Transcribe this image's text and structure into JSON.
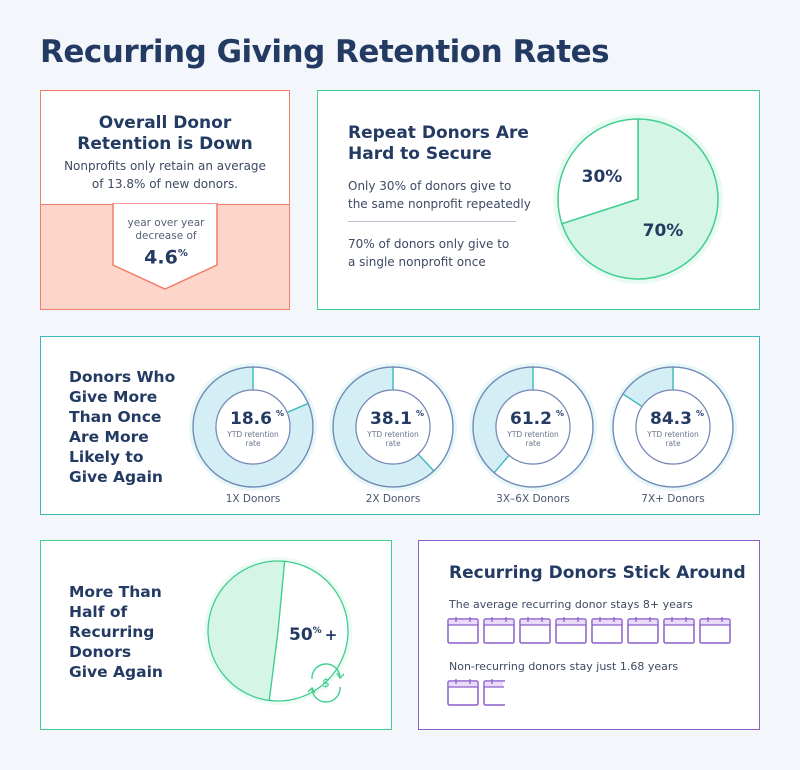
{
  "title": "Recurring Giving Retention Rates",
  "colors": {
    "navy": "#233a63",
    "coral": "#ef7f6b",
    "peach": "#fdd6c9",
    "green": "#3fcf8e",
    "mint": "#d5f5e6",
    "teal": "#3cb6b9",
    "lightblue": "#d3eef4",
    "purple": "#8c5fcc",
    "lavender": "#eadcf8"
  },
  "card1": {
    "heading_line1": "Overall Donor",
    "heading_line2": "Retention is Down",
    "text_line1": "Nonprofits only retain an average",
    "text_line2": "of 13.8% of new donors.",
    "badge_line1": "year over year",
    "badge_line2": "decrease of",
    "badge_value": "4.6",
    "badge_unit": "%"
  },
  "card2": {
    "heading_line1": "Repeat Donors Are",
    "heading_line2": "Hard to Secure",
    "text1_line1": "Only 30% of donors give to",
    "text1_line2": "the same nonprofit repeatedly",
    "text2_line1": "70% of donors only give to",
    "text2_line2": "a single nonprofit once"
  },
  "card3": {
    "heading_lines": [
      "Donors Who",
      "Give More",
      "Than Once",
      "Are More",
      "Likely to",
      "Give Again"
    ],
    "sublabel_line1": "YTD retention",
    "sublabel_line2": "rate"
  },
  "card4": {
    "heading_lines": [
      "More Than",
      "Half of",
      "Recurring",
      "Donors",
      "Give Again"
    ],
    "value": "50",
    "unit": "%",
    "suffix": "+",
    "icon": "recurring-dollar-icon"
  },
  "card5": {
    "heading": "Recurring Donors Stick Around",
    "text1": "The average recurring donor stays 8+ years",
    "text2": "Non-recurring donors stay just 1.68 years",
    "icon": "calendar-icon"
  },
  "chart_data": [
    {
      "type": "pie",
      "slices": [
        {
          "label": "70%",
          "value": 70
        },
        {
          "label": "30%",
          "value": 30
        }
      ]
    },
    {
      "type": "pie",
      "note_label": "donut",
      "categories": [
        "1X Donors",
        "2X Donors",
        "3X–6X Donors",
        "7X+ Donors"
      ],
      "values": [
        18.6,
        38.1,
        61.2,
        84.3
      ],
      "labels": [
        "18.6",
        "38.1",
        "61.2",
        "84.3"
      ],
      "unit": "%"
    },
    {
      "type": "pie",
      "slices": [
        {
          "label": "50% +",
          "value": 50
        }
      ]
    },
    {
      "type": "bar",
      "categories": [
        "Recurring donors",
        "Non-recurring donors"
      ],
      "values": [
        8,
        1.68
      ],
      "unit": "years"
    }
  ]
}
